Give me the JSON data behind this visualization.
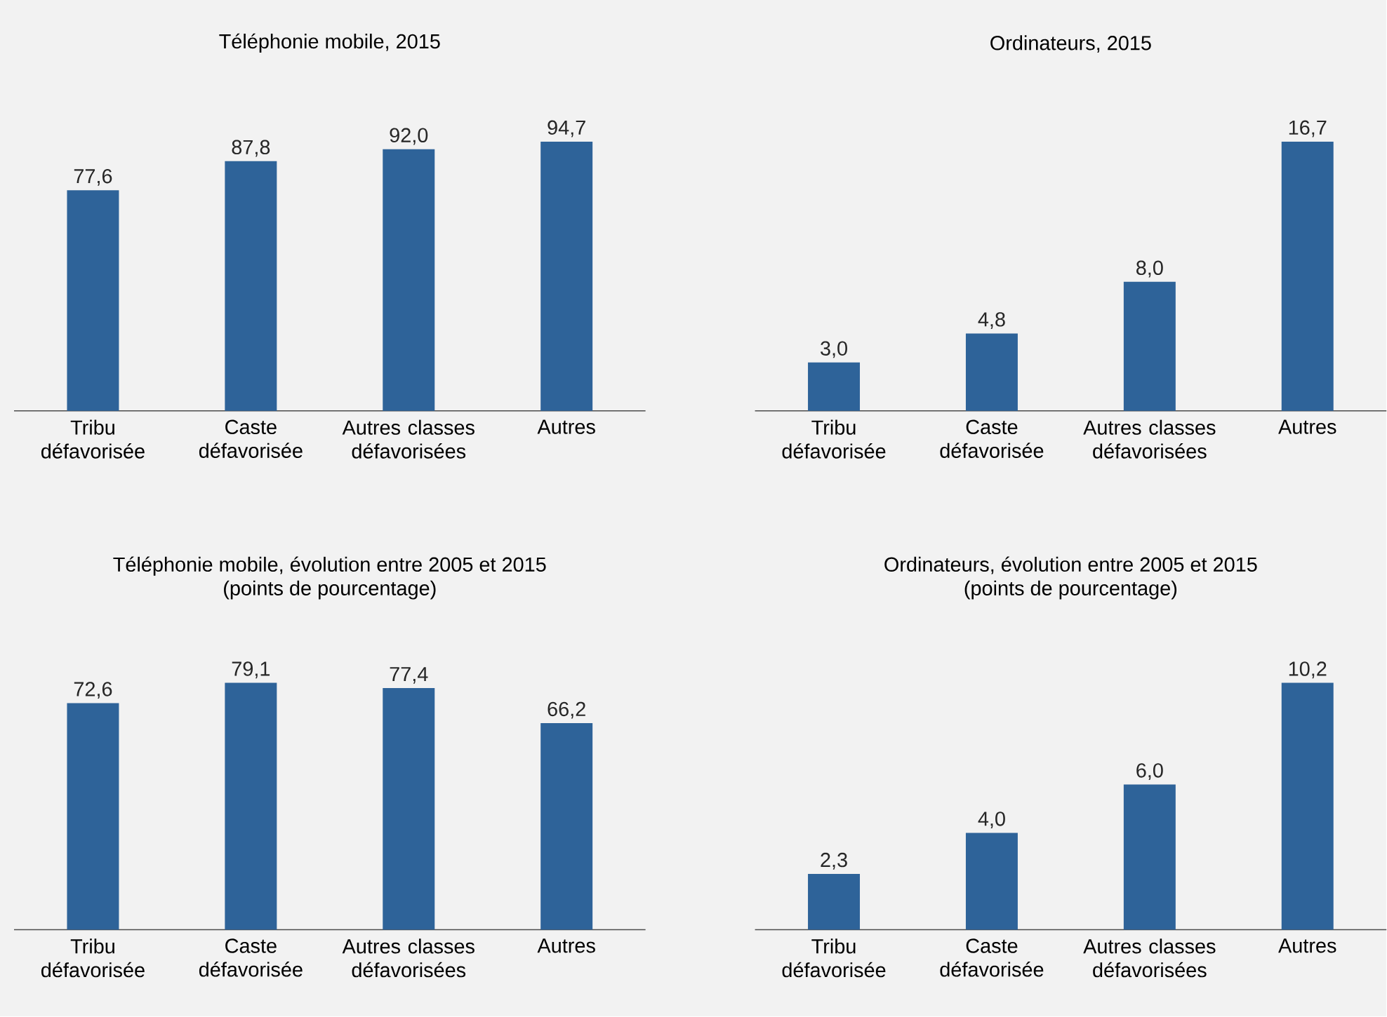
{
  "chart_data": [
    {
      "type": "bar",
      "title": "Téléphonie mobile, 2015",
      "categories": [
        "Tribu défavorisée",
        "Caste défavorisée",
        "Autres classes défavorisées",
        "Autres"
      ],
      "values": [
        77.6,
        87.8,
        92.0,
        94.7
      ],
      "value_labels": [
        "77,6",
        "87,8",
        "92,0",
        "94,7"
      ],
      "color": "#2e6399"
    },
    {
      "type": "bar",
      "title": "Ordinateurs, 2015",
      "categories": [
        "Tribu défavorisée",
        "Caste défavorisée",
        "Autres classes défavorisées",
        "Autres"
      ],
      "values": [
        3.0,
        4.8,
        8.0,
        16.7
      ],
      "value_labels": [
        "3,0",
        "4,8",
        "8,0",
        "16,7"
      ],
      "color": "#2e6399"
    },
    {
      "type": "bar",
      "title": "Téléphonie mobile, évolution entre 2005 et 2015",
      "subtitle": "(points de pourcentage)",
      "categories": [
        "Tribu défavorisée",
        "Caste défavorisée",
        "Autres classes défavorisées",
        "Autres"
      ],
      "values": [
        72.6,
        79.1,
        77.4,
        66.2
      ],
      "value_labels": [
        "72,6",
        "79,1",
        "77,4",
        "66,2"
      ],
      "color": "#2e6399"
    },
    {
      "type": "bar",
      "title": "Ordinateurs, évolution entre 2005 et 2015",
      "subtitle": "(points de pourcentage)",
      "categories": [
        "Tribu défavorisée",
        "Caste défavorisée",
        "Autres classes défavorisées",
        "Autres"
      ],
      "values": [
        2.3,
        4.0,
        6.0,
        10.2
      ],
      "value_labels": [
        "2,3",
        "4,0",
        "6,0",
        "10,2"
      ],
      "color": "#2e6399"
    }
  ]
}
